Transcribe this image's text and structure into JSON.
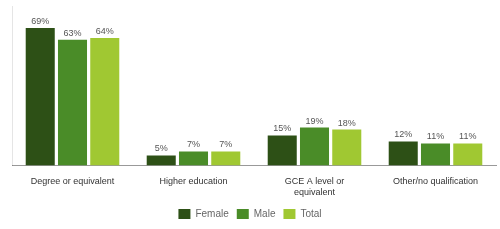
{
  "chart_data": {
    "type": "bar",
    "categories": [
      "Degree or equivalent",
      "Higher education",
      "GCE A level or\nequivalent",
      "Other/no qualification"
    ],
    "series": [
      {
        "name": "Female",
        "color": "#2d5016",
        "values": [
          69,
          5,
          15,
          12
        ],
        "value_labels": [
          "69%",
          "5%",
          "15%",
          "12%"
        ]
      },
      {
        "name": "Male",
        "color": "#4a8c28",
        "values": [
          63,
          7,
          19,
          11
        ],
        "value_labels": [
          "63%",
          "7%",
          "19%",
          "11%"
        ]
      },
      {
        "name": "Total",
        "color": "#a0c832",
        "values": [
          64,
          7,
          18,
          11
        ],
        "value_labels": [
          "64%",
          "7%",
          "18%",
          "11%"
        ]
      }
    ],
    "ylim": [
      0,
      80
    ],
    "grid": false,
    "legend": "bottom",
    "data_labels": true,
    "tick_labels": "x"
  }
}
